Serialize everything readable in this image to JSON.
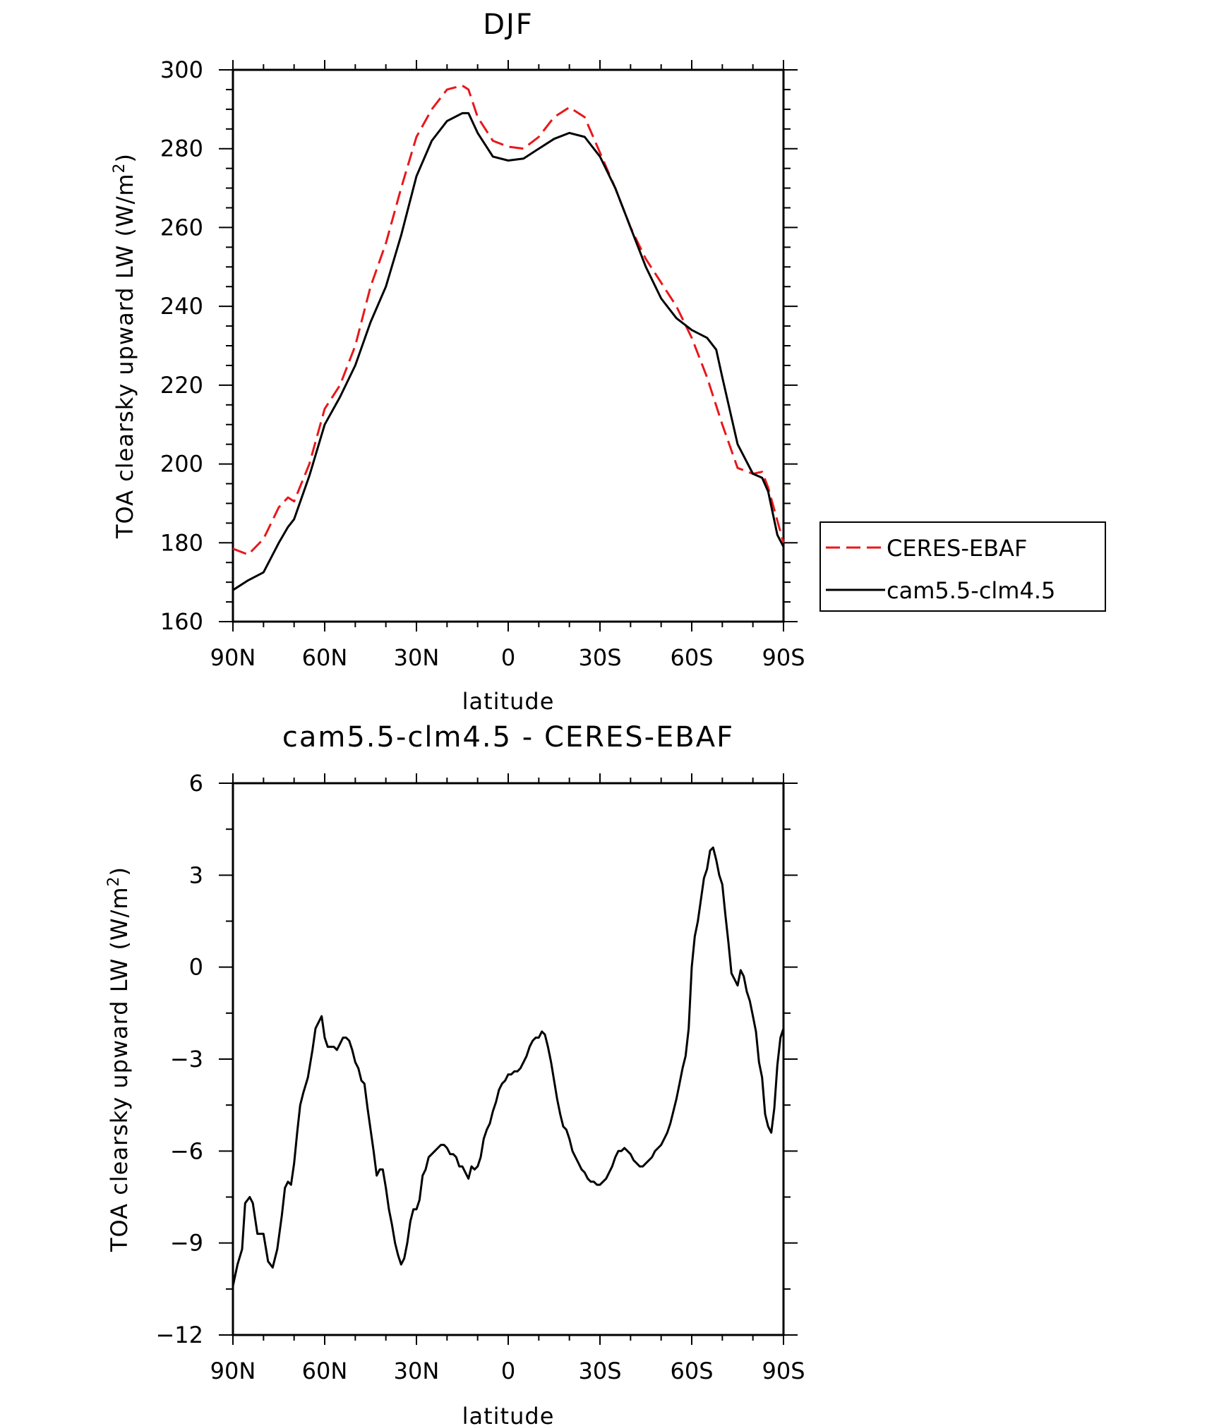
{
  "chart_data": [
    {
      "type": "line",
      "title": "DJF",
      "xlabel": "latitude",
      "ylabel": "TOA clearsky upward LW (W/m",
      "ylabel_sup": "2",
      "ylabel_close": ")",
      "xlim": [
        90,
        -90
      ],
      "ylim": [
        160,
        300
      ],
      "xticks": [
        90,
        60,
        30,
        0,
        -30,
        -60,
        -90
      ],
      "xtick_labels": [
        "90N",
        "60N",
        "30N",
        "0",
        "30S",
        "60S",
        "90S"
      ],
      "yticks": [
        160,
        180,
        200,
        220,
        240,
        260,
        280,
        300
      ],
      "ytick_labels": [
        "160",
        "180",
        "200",
        "220",
        "240",
        "260",
        "280",
        "300"
      ],
      "legend_position": "right",
      "series": [
        {
          "name": "CERES-EBAF",
          "color": "#e8171b",
          "dashed": true,
          "x": [
            90,
            85,
            80,
            75,
            72,
            70,
            65,
            60,
            55,
            50,
            45,
            40,
            35,
            30,
            25,
            20,
            15,
            13,
            10,
            5,
            0,
            -5,
            -10,
            -15,
            -20,
            -25,
            -30,
            -35,
            -40,
            -45,
            -50,
            -55,
            -60,
            -65,
            -70,
            -75,
            -80,
            -83,
            -85,
            -90
          ],
          "y": [
            178.5,
            177,
            181,
            189,
            191.5,
            190.5,
            200,
            214,
            220,
            230,
            245,
            256,
            270,
            283,
            290,
            295,
            296,
            295,
            288,
            282,
            280.5,
            280,
            283,
            288,
            290.5,
            288,
            279,
            270,
            260,
            252,
            246,
            240,
            232,
            222,
            210,
            199,
            197.5,
            198,
            194,
            180
          ]
        },
        {
          "name": "cam5.5-clm4.5",
          "color": "#000000",
          "dashed": false,
          "x": [
            90,
            85,
            80,
            75,
            72,
            70,
            65,
            60,
            55,
            50,
            45,
            40,
            35,
            30,
            25,
            20,
            15,
            13,
            10,
            5,
            0,
            -5,
            -10,
            -15,
            -20,
            -25,
            -30,
            -35,
            -40,
            -45,
            -50,
            -55,
            -60,
            -65,
            -68,
            -70,
            -75,
            -80,
            -83,
            -85,
            -88,
            -90
          ],
          "y": [
            168,
            170.5,
            172.5,
            180,
            184,
            186,
            197,
            210,
            217,
            225,
            236,
            245,
            258,
            273,
            282,
            287,
            289,
            289,
            284,
            278,
            277,
            277.5,
            280,
            282.5,
            284,
            283,
            278,
            270,
            260,
            250,
            242,
            237,
            234,
            232,
            229,
            222,
            205,
            197.5,
            196.5,
            193,
            182,
            179
          ]
        }
      ]
    },
    {
      "type": "line",
      "title": "cam5.5-clm4.5 - CERES-EBAF",
      "xlabel": "latitude",
      "ylabel": "TOA clearsky upward LW (W/m",
      "ylabel_sup": "2",
      "ylabel_close": ")",
      "xlim": [
        90,
        -90
      ],
      "ylim": [
        -12,
        6
      ],
      "xticks": [
        90,
        60,
        30,
        0,
        -30,
        -60,
        -90
      ],
      "xtick_labels": [
        "90N",
        "60N",
        "30N",
        "0",
        "30S",
        "60S",
        "90S"
      ],
      "yticks": [
        -12,
        -9,
        -6,
        -3,
        0,
        3,
        6
      ],
      "ytick_labels": [
        "−12",
        "−9",
        "−6",
        "−3",
        "0",
        "3",
        "6"
      ],
      "series": [
        {
          "color": "#000000",
          "dashed": false,
          "x": [
            90,
            88.5,
            87,
            86,
            84.5,
            83.5,
            82,
            80,
            78.5,
            77,
            75.5,
            74,
            73,
            72,
            71,
            70,
            69,
            68,
            67,
            65.5,
            64,
            63,
            62,
            61,
            60,
            59,
            58,
            57,
            56,
            55,
            54,
            53,
            52,
            51,
            50,
            49,
            48,
            47,
            46,
            45,
            44,
            43,
            42,
            41,
            40,
            39,
            38,
            37,
            36,
            35,
            34,
            33,
            32,
            31,
            30,
            29,
            28,
            27,
            26,
            25,
            24,
            23,
            22,
            21,
            20,
            19,
            18,
            17,
            16,
            15,
            14,
            13,
            12,
            11,
            10,
            9,
            8,
            7,
            6,
            5,
            4,
            3,
            2,
            1,
            0,
            -1,
            -2,
            -3,
            -4,
            -5,
            -6,
            -7,
            -8,
            -9,
            -10,
            -11,
            -12,
            -13,
            -14,
            -15,
            -16,
            -17,
            -18,
            -19,
            -20,
            -21,
            -22,
            -23,
            -24,
            -25,
            -26,
            -27,
            -28,
            -29,
            -30,
            -31,
            -32,
            -33,
            -34,
            -35,
            -36,
            -37,
            -38,
            -39,
            -40,
            -41,
            -42,
            -43,
            -44,
            -45,
            -46,
            -47,
            -48,
            -49,
            -50,
            -51,
            -52,
            -53,
            -54,
            -55,
            -56,
            -57,
            -58,
            -59,
            -60,
            -61,
            -62,
            -63,
            -64,
            -65,
            -66,
            -67,
            -68,
            -69,
            -70,
            -71,
            -72,
            -73,
            -74,
            -75,
            -76,
            -77,
            -78,
            -79,
            -80,
            -81,
            -82,
            -83,
            -84,
            -85,
            -86,
            -87,
            -88,
            -89,
            -90
          ],
          "y": [
            -10.4,
            -9.7,
            -9.2,
            -7.7,
            -7.5,
            -7.7,
            -8.7,
            -8.7,
            -9.6,
            -9.8,
            -9.2,
            -8.1,
            -7.2,
            -7.0,
            -7.1,
            -6.4,
            -5.4,
            -4.5,
            -4.1,
            -3.6,
            -2.7,
            -2.0,
            -1.8,
            -1.6,
            -2.3,
            -2.6,
            -2.6,
            -2.6,
            -2.7,
            -2.5,
            -2.3,
            -2.3,
            -2.4,
            -2.7,
            -3.1,
            -3.3,
            -3.7,
            -3.8,
            -4.6,
            -5.3,
            -6.0,
            -6.8,
            -6.6,
            -6.6,
            -7.2,
            -7.9,
            -8.4,
            -9.0,
            -9.4,
            -9.7,
            -9.5,
            -9.0,
            -8.3,
            -7.9,
            -7.9,
            -7.6,
            -6.8,
            -6.6,
            -6.2,
            -6.1,
            -6.0,
            -5.9,
            -5.8,
            -5.8,
            -5.9,
            -6.1,
            -6.1,
            -6.2,
            -6.5,
            -6.5,
            -6.7,
            -6.9,
            -6.5,
            -6.6,
            -6.5,
            -6.2,
            -5.6,
            -5.3,
            -5.1,
            -4.7,
            -4.4,
            -4.0,
            -3.8,
            -3.7,
            -3.5,
            -3.5,
            -3.4,
            -3.4,
            -3.3,
            -3.1,
            -2.9,
            -2.6,
            -2.4,
            -2.3,
            -2.3,
            -2.1,
            -2.2,
            -2.6,
            -3.1,
            -3.7,
            -4.3,
            -4.8,
            -5.2,
            -5.3,
            -5.6,
            -6.0,
            -6.2,
            -6.4,
            -6.6,
            -6.7,
            -6.9,
            -7.0,
            -7.0,
            -7.1,
            -7.1,
            -7.0,
            -6.9,
            -6.7,
            -6.5,
            -6.2,
            -6.0,
            -6.0,
            -5.9,
            -6.0,
            -6.1,
            -6.3,
            -6.4,
            -6.5,
            -6.5,
            -6.4,
            -6.3,
            -6.2,
            -6.0,
            -5.9,
            -5.8,
            -5.6,
            -5.4,
            -5.1,
            -4.7,
            -4.3,
            -3.8,
            -3.3,
            -2.9,
            -2.0,
            0.0,
            1.0,
            1.5,
            2.2,
            2.9,
            3.2,
            3.8,
            3.9,
            3.5,
            3.0,
            2.7,
            1.7,
            0.8,
            -0.2,
            -0.4,
            -0.6,
            -0.1,
            -0.3,
            -0.8,
            -1.1,
            -1.6,
            -2.1,
            -3.1,
            -3.6,
            -4.8,
            -5.2,
            -5.4,
            -4.6,
            -3.2,
            -2.3,
            -2.0
          ]
        }
      ]
    }
  ]
}
